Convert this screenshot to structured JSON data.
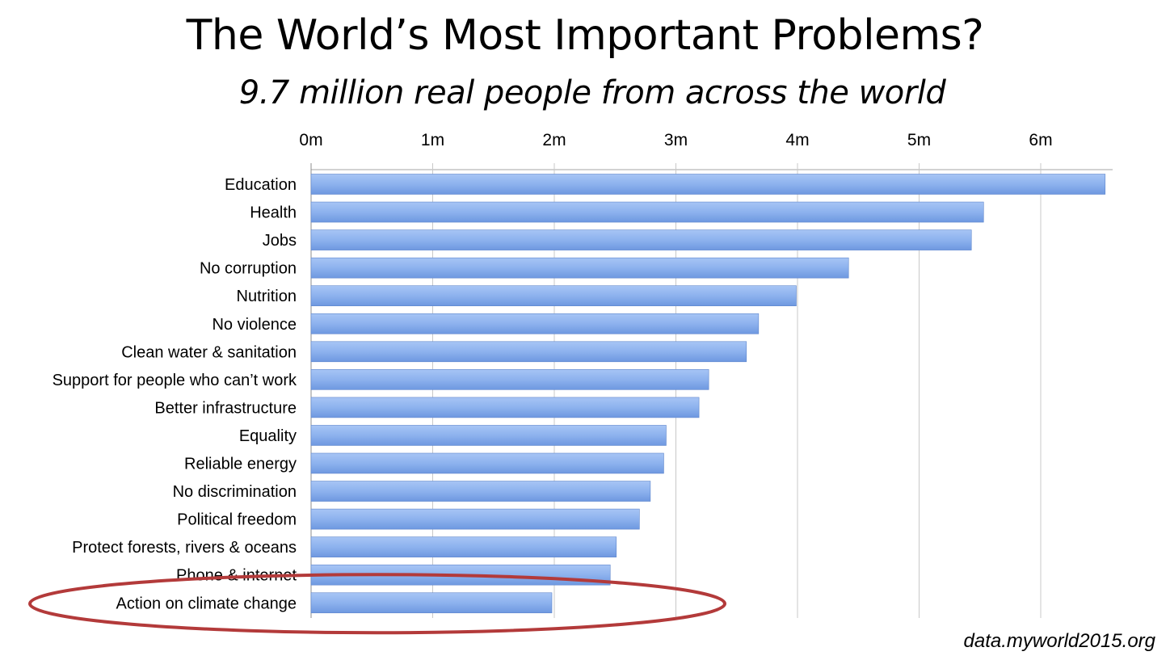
{
  "chart_data": {
    "type": "bar",
    "orientation": "horizontal",
    "title": "The World’s Most Important Problems?",
    "subtitle": "9.7 million real people from across the world",
    "categories": [
      "Education",
      "Health",
      "Jobs",
      "No corruption",
      "Nutrition",
      "No violence",
      "Clean water & sanitation",
      "Support for people who can’t work",
      "Better infrastructure",
      "Equality",
      "Reliable energy",
      "No discrimination",
      "Political freedom",
      "Protect forests, rivers & oceans",
      "Phone & internet",
      "Action on climate change"
    ],
    "values": [
      6.53,
      5.53,
      5.43,
      4.42,
      3.99,
      3.68,
      3.58,
      3.27,
      3.19,
      2.92,
      2.9,
      2.79,
      2.7,
      2.51,
      2.46,
      1.98
    ],
    "x_ticks": [
      "0m",
      "1m",
      "2m",
      "3m",
      "4m",
      "5m",
      "6m"
    ],
    "xlim": [
      0,
      6.6
    ],
    "axis_position": "top",
    "grid": "vertical",
    "bar_color": "#7fa8ea",
    "highlight": {
      "category": "Action on climate change",
      "shape": "ellipse",
      "color": "#b33a3a"
    }
  },
  "source": "data.myworld2015.org"
}
